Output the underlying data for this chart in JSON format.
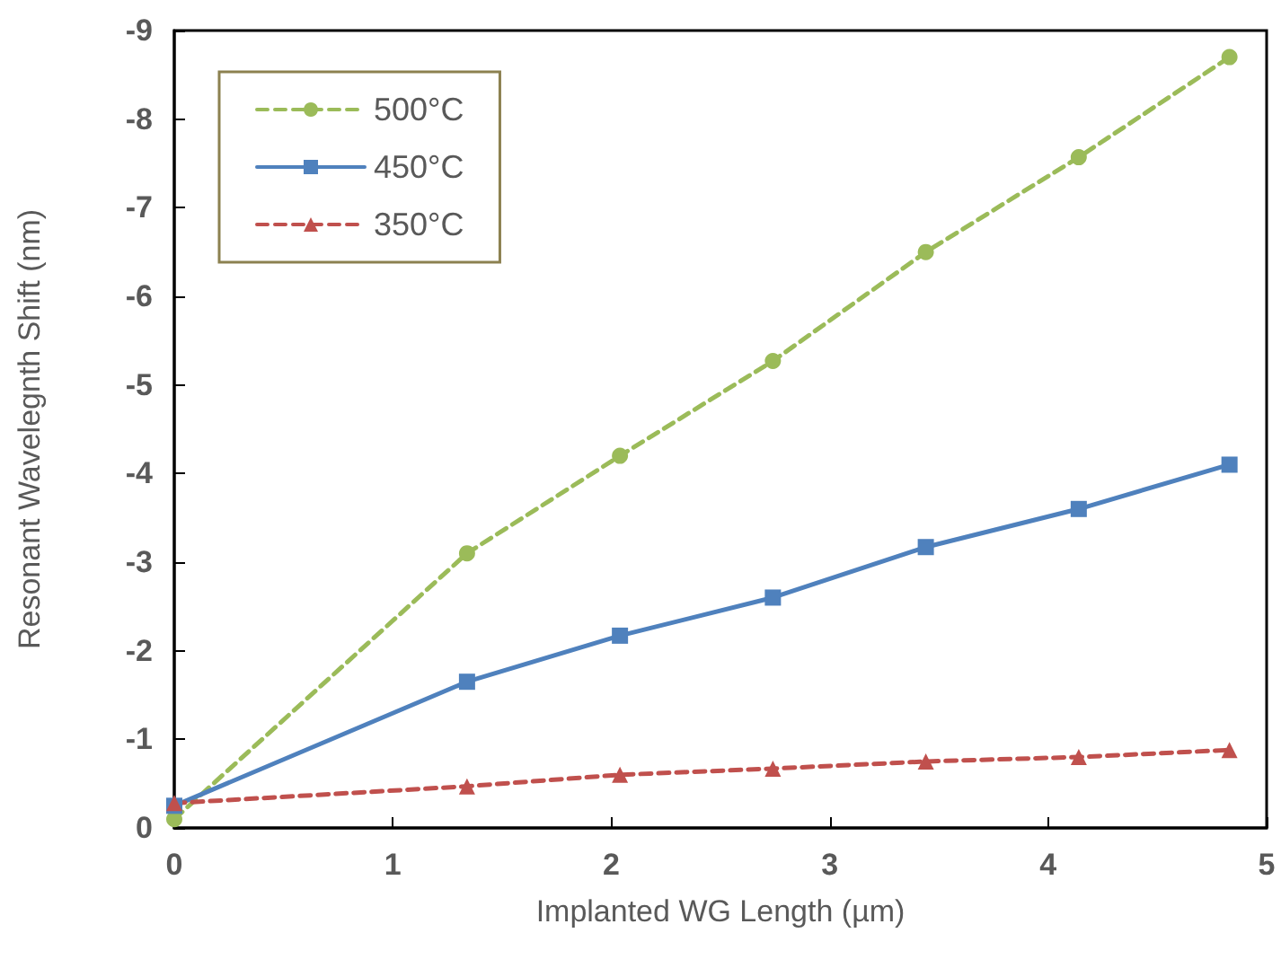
{
  "chart_data": {
    "type": "line",
    "xlabel": "Implanted WG Length (µm)",
    "ylabel": "Resonant Wavelegnth Shift (nm)",
    "x": [
      0,
      1.34,
      2.04,
      2.74,
      3.44,
      4.14,
      4.83
    ],
    "series": [
      {
        "name": "500°C",
        "color": "#9bbb59",
        "marker": "circle",
        "line_style": "dashed",
        "values": [
          -0.1,
          -3.1,
          -4.2,
          -5.27,
          -6.5,
          -7.57,
          -8.7
        ]
      },
      {
        "name": "450°C",
        "color": "#4f81bd",
        "marker": "square",
        "line_style": "solid",
        "values": [
          -0.25,
          -1.65,
          -2.17,
          -2.6,
          -3.17,
          -3.6,
          -4.1
        ]
      },
      {
        "name": "350°C",
        "color": "#c0504d",
        "marker": "triangle",
        "line_style": "dashed",
        "values": [
          -0.28,
          -0.47,
          -0.6,
          -0.67,
          -0.75,
          -0.8,
          -0.88
        ]
      }
    ],
    "xlim": [
      0,
      5
    ],
    "xticks": [
      0,
      1,
      2,
      3,
      4,
      5
    ],
    "ylim": [
      0,
      -9
    ],
    "yticks": [
      0,
      -1,
      -2,
      -3,
      -4,
      -5,
      -6,
      -7,
      -8,
      -9
    ],
    "grid": false,
    "legend": "top left"
  }
}
